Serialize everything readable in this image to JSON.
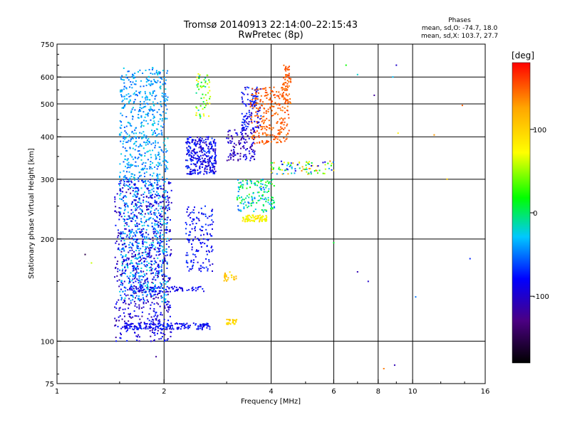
{
  "chart_data": {
    "type": "scatter",
    "title": "Tromsø 20140913 22:14:00–22:15:43",
    "subtitle": "RwPretec (8p)",
    "xlabel": "Frequency [MHz]",
    "ylabel": "Stationary phase Virtual Height [km]",
    "x_scale": "log",
    "y_scale": "log",
    "xlim": [
      1,
      16
    ],
    "ylim": [
      75,
      750
    ],
    "x_ticks": [
      1,
      2,
      4,
      6,
      8,
      10,
      16
    ],
    "y_ticks": [
      75,
      100,
      200,
      300,
      400,
      500,
      600,
      750
    ],
    "grid": true,
    "stats": {
      "header": "Phases",
      "line_o": "mean, sd,O: -74.7, 18.0",
      "line_x": "mean, sd,X: 103.7, 27.7"
    },
    "colorbar": {
      "label": "[deg]",
      "range": [
        -180,
        180
      ],
      "ticks": [
        100,
        0,
        -100
      ],
      "colors": [
        "#000000",
        "#4b0082",
        "#0000ff",
        "#00c8ff",
        "#00ff00",
        "#ffff00",
        "#ffa500",
        "#ff0000"
      ]
    },
    "clusters": [
      {
        "x": [
          1.5,
          2.05
        ],
        "y": [
          130,
          640
        ],
        "n": 1100,
        "phase": [
          -60,
          -20
        ],
        "note": "blue band 1.5-2 MHz"
      },
      {
        "x": [
          1.45,
          2.1
        ],
        "y": [
          100,
          300
        ],
        "n": 700,
        "phase": [
          -120,
          -70
        ]
      },
      {
        "x": [
          1.55,
          2.7
        ],
        "y": [
          108,
          113
        ],
        "n": 160,
        "phase": [
          -100,
          -60
        ]
      },
      {
        "x": [
          1.6,
          2.6
        ],
        "y": [
          140,
          145
        ],
        "n": 80,
        "phase": [
          -100,
          -70
        ]
      },
      {
        "x": [
          2.3,
          2.8
        ],
        "y": [
          310,
          400
        ],
        "n": 300,
        "phase": [
          -110,
          -60
        ]
      },
      {
        "x": [
          2.3,
          2.75
        ],
        "y": [
          160,
          250
        ],
        "n": 150,
        "phase": [
          -100,
          -60
        ]
      },
      {
        "x": [
          2.45,
          2.7
        ],
        "y": [
          450,
          620
        ],
        "n": 60,
        "phase": [
          -20,
          80
        ]
      },
      {
        "x": [
          3.0,
          3.6
        ],
        "y": [
          340,
          420
        ],
        "n": 120,
        "phase": [
          -130,
          -80
        ]
      },
      {
        "x": [
          3.3,
          3.75
        ],
        "y": [
          420,
          560
        ],
        "n": 120,
        "phase": [
          -110,
          -60
        ]
      },
      {
        "x": [
          3.5,
          4.5
        ],
        "y": [
          380,
          560
        ],
        "n": 250,
        "phase": [
          140,
          160
        ]
      },
      {
        "x": [
          4.3,
          4.55
        ],
        "y": [
          500,
          650
        ],
        "n": 60,
        "phase": [
          140,
          160
        ]
      },
      {
        "x": [
          3.3,
          3.9
        ],
        "y": [
          225,
          235
        ],
        "n": 80,
        "phase": [
          60,
          100
        ]
      },
      {
        "x": [
          3.2,
          4.1
        ],
        "y": [
          240,
          300
        ],
        "n": 150,
        "phase": [
          -60,
          40
        ]
      },
      {
        "x": [
          4.0,
          6.0
        ],
        "y": [
          310,
          340
        ],
        "n": 90,
        "phase": [
          -100,
          140
        ]
      },
      {
        "x": [
          3.0,
          3.2
        ],
        "y": [
          112,
          116
        ],
        "n": 30,
        "phase": [
          80,
          110
        ]
      },
      {
        "x": [
          2.95,
          3.2
        ],
        "y": [
          150,
          160
        ],
        "n": 25,
        "phase": [
          90,
          120
        ]
      }
    ],
    "scattered_points": [
      {
        "x": 1.2,
        "y": 180,
        "phase": -150
      },
      {
        "x": 1.25,
        "y": 170,
        "phase": 60
      },
      {
        "x": 1.9,
        "y": 90,
        "phase": -120
      },
      {
        "x": 6.0,
        "y": 195,
        "phase": 10
      },
      {
        "x": 6.5,
        "y": 650,
        "phase": 20
      },
      {
        "x": 7.0,
        "y": 610,
        "phase": -20
      },
      {
        "x": 7.8,
        "y": 530,
        "phase": -120
      },
      {
        "x": 8.3,
        "y": 83,
        "phase": 140
      },
      {
        "x": 8.9,
        "y": 85,
        "phase": -110
      },
      {
        "x": 8.8,
        "y": 600,
        "phase": -30
      },
      {
        "x": 9.0,
        "y": 650,
        "phase": -100
      },
      {
        "x": 9.1,
        "y": 410,
        "phase": 80
      },
      {
        "x": 10.2,
        "y": 135,
        "phase": -50
      },
      {
        "x": 11.5,
        "y": 405,
        "phase": 130
      },
      {
        "x": 12.5,
        "y": 300,
        "phase": 100
      },
      {
        "x": 13.8,
        "y": 495,
        "phase": 150
      },
      {
        "x": 14.5,
        "y": 175,
        "phase": -70
      },
      {
        "x": 7.0,
        "y": 160,
        "phase": -110
      },
      {
        "x": 7.5,
        "y": 150,
        "phase": -100
      }
    ]
  }
}
